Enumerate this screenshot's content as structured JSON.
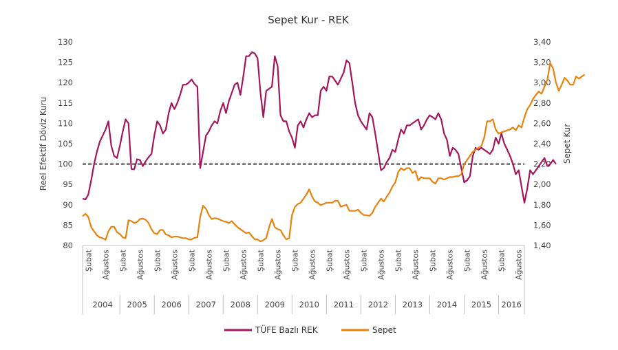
{
  "chart_data": {
    "type": "line",
    "title": "Sepet Kur - REK",
    "ylabel_left": "Reel Efektif Döviz Kuru",
    "ylabel_right": "Sepet Kur",
    "ylim_left": [
      80,
      130
    ],
    "ylim_right": [
      1.4,
      3.4
    ],
    "yticks_left": [
      "80",
      "85",
      "90",
      "95",
      "100",
      "105",
      "110",
      "115",
      "120",
      "125",
      "130"
    ],
    "yticks_right": [
      "1,40",
      "1,60",
      "1,80",
      "2,00",
      "2,20",
      "2,40",
      "2,60",
      "2,80",
      "3,00",
      "3,20",
      "3,40"
    ],
    "reference_line": {
      "value": 100,
      "axis": "left",
      "style": "dashed"
    },
    "x_start": "2003-12",
    "x_end": "2016-10",
    "month_tick_labels": [
      "Şubat",
      "Ağustos"
    ],
    "years": [
      "2004",
      "2005",
      "2006",
      "2007",
      "2008",
      "2009",
      "2010",
      "2011",
      "2012",
      "2013",
      "2014",
      "2015",
      "2016"
    ],
    "grid": false,
    "legend_position": "bottom",
    "series": [
      {
        "name": "TÜFE Bazlı REK",
        "color": "#A3165E",
        "axis": "left",
        "values": [
          91.5,
          91.3,
          92.5,
          96,
          100,
          103,
          105.5,
          107,
          108.5,
          110.5,
          104.5,
          102,
          101.5,
          104.5,
          108,
          111,
          110,
          98.8,
          98.7,
          101.2,
          101,
          99.5,
          100.7,
          101.7,
          102.5,
          107,
          110.5,
          109.5,
          107.5,
          108.5,
          112.5,
          115,
          113.5,
          115,
          117,
          119.5,
          119.5,
          120,
          120.8,
          119.7,
          119,
          99,
          103,
          107,
          108,
          109.5,
          110.5,
          110,
          113,
          115,
          112.5,
          115.5,
          117.5,
          119.5,
          120,
          117,
          121.5,
          126.5,
          126.5,
          127.5,
          127.2,
          126,
          117.5,
          111.5,
          118,
          118.5,
          119,
          126.5,
          124,
          112,
          110.5,
          110.5,
          108,
          106.5,
          104,
          109.5,
          110.5,
          109,
          111,
          112.5,
          111.5,
          112,
          112,
          118,
          119,
          118,
          121.5,
          121.5,
          120.5,
          119.5,
          121,
          122.5,
          125.5,
          124.8,
          120,
          115,
          112,
          110.5,
          109.5,
          108.5,
          112.5,
          111.5,
          107.5,
          103,
          98.5,
          99,
          100.5,
          101.5,
          103.5,
          103,
          106,
          108.5,
          107.5,
          109.5,
          109.5,
          110,
          110.5,
          111,
          108.5,
          109.5,
          111,
          112,
          111.5,
          111,
          112.5,
          111,
          107.5,
          106,
          102,
          104,
          103.5,
          102.5,
          99,
          95.5,
          96,
          97,
          102,
          104,
          103.5,
          104,
          103.5,
          103,
          102.5,
          103.5,
          106.5,
          105,
          107.5,
          105,
          103.5,
          102,
          100,
          97.5,
          98.5,
          94.5,
          90.5,
          94,
          98.5,
          97.5,
          98.5,
          99.5,
          100.5,
          101.5,
          99.5,
          100,
          101,
          100
        ]
      },
      {
        "name": "Sepet",
        "color": "#E8820E",
        "axis": "left",
        "values": [
          87.2,
          87.8,
          87,
          84.5,
          83.5,
          82.5,
          82,
          81.8,
          81.4,
          83.5,
          84.6,
          84.6,
          83.3,
          82.8,
          82,
          81.8,
          86.2,
          86,
          85.5,
          85.8,
          86.5,
          86.6,
          86.3,
          85.5,
          84,
          83,
          82.8,
          83.8,
          83.8,
          82.7,
          82.5,
          82,
          82.2,
          82.2,
          82,
          81.8,
          81.8,
          81.5,
          81.5,
          81.9,
          82,
          87,
          89.8,
          89,
          87.5,
          86.5,
          86.7,
          86.6,
          86.3,
          86,
          85.8,
          85.5,
          86,
          85.2,
          84.5,
          84,
          83.5,
          83,
          83.2,
          82.3,
          81.5,
          81.5,
          81,
          81.3,
          81.8,
          84.5,
          86.5,
          84.5,
          84,
          83.8,
          82.5,
          81.5,
          81.8,
          87.5,
          89.5,
          90.2,
          90.5,
          91.5,
          92.5,
          93.8,
          92,
          90.8,
          90.5,
          89.9,
          90.2,
          90.5,
          90.5,
          90.5,
          91,
          91,
          89.5,
          89.8,
          90,
          88.5,
          88.5,
          88.5,
          88.8,
          88,
          87.5,
          87.4,
          87.3,
          88,
          89.5,
          90.5,
          91.5,
          90.8,
          92,
          93,
          94.5,
          95.5,
          98,
          99,
          98.5,
          99,
          99,
          97.8,
          98.3,
          96,
          96.8,
          96.5,
          96.5,
          96.5,
          95.6,
          95.2,
          96.5,
          96.5,
          96.2,
          96.5,
          96.8,
          96.8,
          97,
          97,
          97.5,
          100,
          101,
          102,
          103,
          103.5,
          104,
          104.5,
          106.5,
          110.5,
          110.5,
          111,
          108.5,
          107.5,
          107.8,
          108,
          108.3,
          108.5,
          109,
          108.3,
          109.5,
          109,
          111.5,
          113.5,
          114.5,
          116,
          117,
          117.8,
          117.3,
          119,
          120.8,
          124.8,
          123.5,
          120,
          118,
          119.5,
          121.2,
          120.5,
          119.5,
          119.5,
          121.5,
          121,
          121.5,
          122
        ]
      }
    ]
  }
}
